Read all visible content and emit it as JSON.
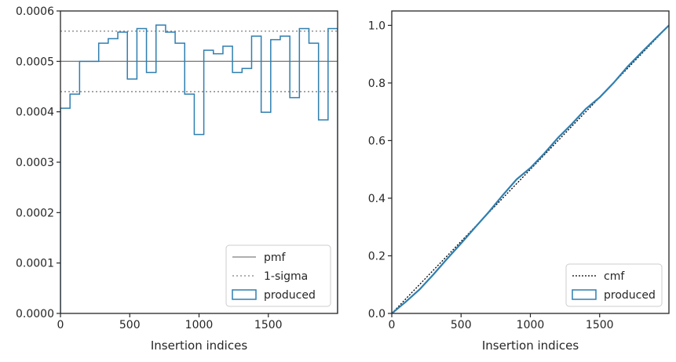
{
  "chart_data": [
    {
      "type": "step",
      "xlabel": "Insertion indices",
      "ylabel": "",
      "xlim": [
        0,
        2000
      ],
      "ylim": [
        0,
        0.0006
      ],
      "xticks": [
        0,
        500,
        1000,
        1500
      ],
      "xtick_labels": [
        "0",
        "500",
        "1000",
        "1500"
      ],
      "yticks": [
        0,
        0.0001,
        0.0002,
        0.0003,
        0.0004,
        0.0005,
        0.0006
      ],
      "ytick_labels": [
        "0.0000",
        "0.0001",
        "0.0002",
        "0.0003",
        "0.0004",
        "0.0005",
        "0.0006"
      ],
      "legend": {
        "position": "lower-right",
        "entries": [
          "pmf",
          "1-sigma",
          "produced"
        ]
      },
      "hlines": [
        {
          "name": "pmf",
          "y": 0.0005,
          "style": "solid",
          "color": "#7f7f7f"
        },
        {
          "name": "1-sigma",
          "y": 0.00056,
          "style": "dotted",
          "color": "#7f7f7f"
        },
        {
          "name": "1-sigma",
          "y": 0.00044,
          "style": "dotted",
          "color": "#7f7f7f"
        }
      ],
      "series": [
        {
          "name": "produced",
          "color": "#2f7fb0",
          "bin_width": 68.97,
          "values": [
            0.000407,
            0.000435,
            0.0005,
            0.0005,
            0.000536,
            0.000545,
            0.000558,
            0.000465,
            0.000565,
            0.000478,
            0.000572,
            0.000558,
            0.000536,
            0.000435,
            0.000355,
            0.000522,
            0.000515,
            0.00053,
            0.000478,
            0.000486,
            0.00055,
            0.000399,
            0.000543,
            0.00055,
            0.000428,
            0.000565,
            0.000536,
            0.000384,
            0.000565
          ]
        }
      ]
    },
    {
      "type": "line",
      "xlabel": "Insertion indices",
      "ylabel": "",
      "xlim": [
        0,
        2000
      ],
      "ylim": [
        0,
        1.05
      ],
      "xticks": [
        0,
        500,
        1000,
        1500
      ],
      "xtick_labels": [
        "0",
        "500",
        "1000",
        "1500"
      ],
      "yticks": [
        0,
        0.2,
        0.4,
        0.6,
        0.8,
        1.0
      ],
      "ytick_labels": [
        "0.0",
        "0.2",
        "0.4",
        "0.6",
        "0.8",
        "1.0"
      ],
      "legend": {
        "position": "lower-right",
        "entries": [
          "cmf",
          "produced"
        ]
      },
      "series": [
        {
          "name": "cmf",
          "style": "dotted",
          "color": "#000000",
          "x": [
            0,
            2000
          ],
          "y": [
            0,
            1.0
          ]
        },
        {
          "name": "produced",
          "style": "solid",
          "color": "#2f7fb0",
          "x": [
            0,
            100,
            200,
            300,
            400,
            500,
            600,
            700,
            800,
            900,
            1000,
            1100,
            1200,
            1300,
            1400,
            1500,
            1600,
            1700,
            1800,
            1900,
            2000
          ],
          "y": [
            0,
            0.04,
            0.083,
            0.135,
            0.19,
            0.243,
            0.298,
            0.352,
            0.41,
            0.465,
            0.505,
            0.555,
            0.61,
            0.658,
            0.71,
            0.75,
            0.8,
            0.856,
            0.905,
            0.953,
            1.0
          ]
        }
      ]
    }
  ]
}
